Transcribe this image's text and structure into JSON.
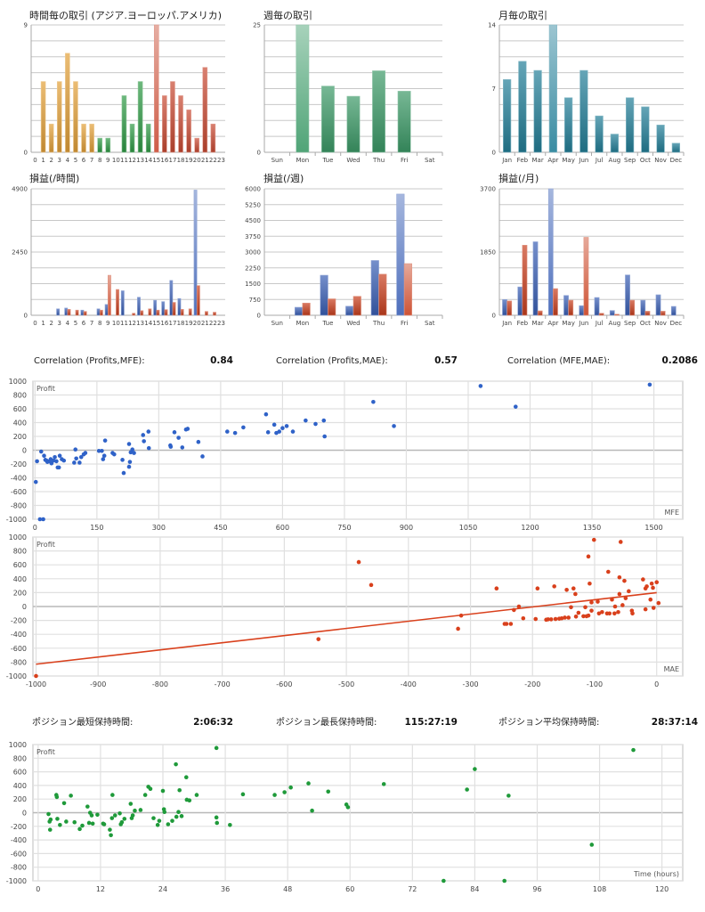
{
  "stats": {
    "correlations": [
      {
        "label": "Correlation (Profits,MFE):",
        "value": "0.84"
      },
      {
        "label": "Correlation (Profits,MAE):",
        "value": "0.57"
      },
      {
        "label": "Correlation (MFE,MAE):",
        "value": "0.2086"
      }
    ],
    "holding_times": [
      {
        "label": "ポジション最短保持時間:",
        "value": "2:06:32"
      },
      {
        "label": "ポジション最長保持時間:",
        "value": "115:27:19"
      },
      {
        "label": "ポジション平均保持時間:",
        "value": "28:37:14"
      }
    ]
  },
  "chart_data": [
    {
      "id": "hourly_trades",
      "type": "bar",
      "title": "時間毎の取引 (アジア.ヨーロッパ.アメリカ)",
      "categories": [
        "0",
        "1",
        "2",
        "3",
        "4",
        "5",
        "6",
        "7",
        "8",
        "9",
        "10",
        "11",
        "12",
        "13",
        "14",
        "15",
        "16",
        "17",
        "18",
        "19",
        "20",
        "21",
        "22",
        "23"
      ],
      "series_values": [
        [
          0,
          5,
          2,
          5,
          7,
          5,
          2,
          2,
          1,
          1,
          0,
          4,
          2,
          5,
          2,
          9,
          4,
          5,
          4,
          3,
          1,
          6,
          2,
          0
        ]
      ],
      "colors": [
        "#e2a03a",
        "#e2a03a",
        "#e2a03a",
        "#e2a03a",
        "#e2a03a",
        "#e2a03a",
        "#e2a03a",
        "#e2a03a",
        "#2f9a45",
        "#2f9a45",
        "#2f9a45",
        "#2f9a45",
        "#2f9a45",
        "#2f9a45",
        "#2f9a45",
        "#c84a32",
        "#c84a32",
        "#c84a32",
        "#c84a32",
        "#c84a32",
        "#c84a32",
        "#c84a32",
        "#c84a32",
        "#c84a32"
      ],
      "ylim": [
        0,
        9
      ],
      "yticks": [
        0,
        9
      ]
    },
    {
      "id": "weekly_trades",
      "type": "bar",
      "title": "週毎の取引",
      "categories": [
        "Sun",
        "Mon",
        "Tue",
        "Wed",
        "Thu",
        "Fri",
        "Sat"
      ],
      "series_values": [
        [
          0,
          25,
          13,
          11,
          16,
          12,
          0
        ]
      ],
      "colors": [
        "#3c9a68"
      ],
      "ylim": [
        0,
        25
      ],
      "yticks": [
        0,
        25
      ]
    },
    {
      "id": "monthly_trades",
      "type": "bar",
      "title": "月毎の取引",
      "categories": [
        "Jan",
        "Feb",
        "Mar",
        "Apr",
        "May",
        "Jun",
        "Jul",
        "Aug",
        "Sep",
        "Oct",
        "Nov",
        "Dec"
      ],
      "series_values": [
        [
          8,
          10,
          9,
          14,
          6,
          9,
          4,
          2,
          6,
          5,
          3,
          1
        ]
      ],
      "colors": [
        "#237f98"
      ],
      "ylim": [
        0,
        14
      ],
      "yticks": [
        0,
        7,
        14
      ]
    },
    {
      "id": "hourly_pl",
      "type": "bar",
      "title": "損益(/時間)",
      "categories": [
        "0",
        "1",
        "2",
        "3",
        "4",
        "5",
        "6",
        "7",
        "8",
        "9",
        "10",
        "11",
        "12",
        "13",
        "14",
        "15",
        "16",
        "17",
        "18",
        "19",
        "20",
        "21",
        "22",
        "23"
      ],
      "series_values": [
        [
          0,
          0,
          0,
          250,
          280,
          0,
          200,
          0,
          250,
          420,
          0,
          950,
          0,
          700,
          0,
          580,
          530,
          1350,
          650,
          0,
          4850,
          0,
          0,
          0
        ],
        [
          0,
          0,
          0,
          0,
          230,
          200,
          150,
          0,
          200,
          1550,
          1000,
          0,
          80,
          180,
          250,
          200,
          220,
          500,
          230,
          250,
          1150,
          150,
          120,
          0
        ]
      ],
      "colors": [
        "#3a5fb5",
        "#c8401e"
      ],
      "ylim": [
        0,
        4900
      ],
      "yticks": [
        0,
        2450,
        4900
      ]
    },
    {
      "id": "weekly_pl",
      "type": "bar",
      "title": "損益(/週)",
      "categories": [
        "Sun",
        "Mon",
        "Tue",
        "Wed",
        "Thu",
        "Fri",
        "Sat"
      ],
      "series_values": [
        [
          0,
          380,
          1900,
          430,
          2600,
          5750,
          0
        ],
        [
          0,
          580,
          780,
          900,
          1950,
          2450,
          0
        ]
      ],
      "colors": [
        "#3a5fb5",
        "#c8401e"
      ],
      "ylim": [
        0,
        6000
      ],
      "yticks": [
        0,
        750,
        1500,
        2250,
        3000,
        3750,
        4500,
        5250,
        6000
      ]
    },
    {
      "id": "monthly_pl",
      "type": "bar",
      "title": "損益(/月)",
      "categories": [
        "Jan",
        "Feb",
        "Mar",
        "Apr",
        "May",
        "Jun",
        "Jul",
        "Aug",
        "Sep",
        "Oct",
        "Nov",
        "Dec"
      ],
      "series_values": [
        [
          460,
          830,
          2150,
          3700,
          580,
          280,
          520,
          140,
          1180,
          440,
          600,
          260
        ],
        [
          420,
          2050,
          130,
          780,
          440,
          2280,
          60,
          30,
          440,
          120,
          120,
          0
        ]
      ],
      "colors": [
        "#3a5fb5",
        "#c8401e"
      ],
      "ylim": [
        0,
        3700
      ],
      "yticks": [
        0,
        1850,
        3700
      ]
    },
    {
      "id": "profit_vs_mfe",
      "type": "scatter",
      "ylabel": "Profit",
      "xlabel": "MFE",
      "color": "#2f62c8",
      "xlim": [
        -5,
        1570
      ],
      "ylim": [
        -1000,
        1000
      ],
      "xticks": [
        0,
        150,
        300,
        450,
        600,
        750,
        900,
        1050,
        1200,
        1350,
        1500
      ],
      "yticks": [
        -1000,
        -800,
        -600,
        -400,
        -200,
        0,
        200,
        400,
        600,
        800,
        1000
      ],
      "points": [
        [
          2,
          -460
        ],
        [
          5,
          -160
        ],
        [
          12,
          -1000
        ],
        [
          20,
          -1000
        ],
        [
          15,
          -20
        ],
        [
          22,
          -80
        ],
        [
          25,
          -140
        ],
        [
          28,
          -150
        ],
        [
          30,
          -170
        ],
        [
          35,
          -160
        ],
        [
          38,
          -130
        ],
        [
          40,
          -190
        ],
        [
          45,
          -150
        ],
        [
          48,
          -100
        ],
        [
          52,
          -160
        ],
        [
          55,
          -250
        ],
        [
          58,
          -250
        ],
        [
          60,
          -80
        ],
        [
          65,
          -130
        ],
        [
          70,
          -150
        ],
        [
          95,
          -180
        ],
        [
          98,
          10
        ],
        [
          100,
          -120
        ],
        [
          108,
          -180
        ],
        [
          112,
          -100
        ],
        [
          118,
          -60
        ],
        [
          122,
          -40
        ],
        [
          155,
          -10
        ],
        [
          162,
          -10
        ],
        [
          165,
          -130
        ],
        [
          168,
          -80
        ],
        [
          170,
          140
        ],
        [
          188,
          -40
        ],
        [
          192,
          -60
        ],
        [
          212,
          -140
        ],
        [
          215,
          -330
        ],
        [
          228,
          -240
        ],
        [
          228,
          90
        ],
        [
          230,
          -170
        ],
        [
          232,
          -30
        ],
        [
          236,
          10
        ],
        [
          240,
          -40
        ],
        [
          262,
          220
        ],
        [
          264,
          130
        ],
        [
          275,
          270
        ],
        [
          276,
          30
        ],
        [
          328,
          70
        ],
        [
          329,
          50
        ],
        [
          338,
          260
        ],
        [
          348,
          180
        ],
        [
          357,
          40
        ],
        [
          366,
          300
        ],
        [
          370,
          310
        ],
        [
          396,
          120
        ],
        [
          406,
          -90
        ],
        [
          466,
          270
        ],
        [
          485,
          250
        ],
        [
          505,
          330
        ],
        [
          560,
          520
        ],
        [
          565,
          260
        ],
        [
          580,
          370
        ],
        [
          585,
          250
        ],
        [
          592,
          270
        ],
        [
          600,
          320
        ],
        [
          610,
          350
        ],
        [
          625,
          270
        ],
        [
          656,
          430
        ],
        [
          680,
          380
        ],
        [
          700,
          430
        ],
        [
          702,
          200
        ],
        [
          820,
          700
        ],
        [
          870,
          350
        ],
        [
          1080,
          930
        ],
        [
          1165,
          630
        ],
        [
          1490,
          950
        ]
      ]
    },
    {
      "id": "profit_vs_mae",
      "type": "scatter",
      "ylabel": "Profit",
      "xlabel": "MAE",
      "color": "#d9401c",
      "xlim": [
        -1005,
        42
      ],
      "ylim": [
        -1000,
        1000
      ],
      "xticks": [
        -1000,
        -900,
        -800,
        -700,
        -600,
        -500,
        -400,
        -300,
        -200,
        -100,
        0
      ],
      "yticks": [
        -1000,
        -800,
        -600,
        -400,
        -200,
        0,
        200,
        400,
        600,
        800,
        1000
      ],
      "trendline": [
        [
          -1000,
          -830
        ],
        [
          0,
          200
        ]
      ],
      "points": [
        [
          -1000,
          -1000
        ],
        [
          -545,
          -470
        ],
        [
          -480,
          640
        ],
        [
          -460,
          310
        ],
        [
          -320,
          -320
        ],
        [
          -315,
          -130
        ],
        [
          -258,
          260
        ],
        [
          -245,
          -250
        ],
        [
          -242,
          -250
        ],
        [
          -235,
          -250
        ],
        [
          -230,
          -50
        ],
        [
          -222,
          0
        ],
        [
          -215,
          -170
        ],
        [
          -195,
          -180
        ],
        [
          -192,
          260
        ],
        [
          -178,
          -190
        ],
        [
          -175,
          -185
        ],
        [
          -170,
          -185
        ],
        [
          -165,
          290
        ],
        [
          -163,
          -180
        ],
        [
          -157,
          -175
        ],
        [
          -153,
          -170
        ],
        [
          -148,
          -160
        ],
        [
          -145,
          240
        ],
        [
          -142,
          -160
        ],
        [
          -138,
          -10
        ],
        [
          -134,
          260
        ],
        [
          -131,
          180
        ],
        [
          -130,
          -145
        ],
        [
          -126,
          -90
        ],
        [
          -118,
          -140
        ],
        [
          -115,
          -10
        ],
        [
          -113,
          -140
        ],
        [
          -110,
          -130
        ],
        [
          -110,
          720
        ],
        [
          -108,
          330
        ],
        [
          -105,
          60
        ],
        [
          -105,
          -60
        ],
        [
          -101,
          960
        ],
        [
          -95,
          70
        ],
        [
          -93,
          -100
        ],
        [
          -88,
          -80
        ],
        [
          -80,
          -100
        ],
        [
          -78,
          500
        ],
        [
          -76,
          -100
        ],
        [
          -72,
          100
        ],
        [
          -68,
          -100
        ],
        [
          -67,
          0
        ],
        [
          -62,
          -80
        ],
        [
          -60,
          420
        ],
        [
          -60,
          180
        ],
        [
          -58,
          930
        ],
        [
          -55,
          20
        ],
        [
          -52,
          370
        ],
        [
          -50,
          120
        ],
        [
          -45,
          220
        ],
        [
          -40,
          -60
        ],
        [
          -39,
          -100
        ],
        [
          -22,
          390
        ],
        [
          -18,
          -40
        ],
        [
          -18,
          260
        ],
        [
          -16,
          290
        ],
        [
          -10,
          100
        ],
        [
          -8,
          330
        ],
        [
          -6,
          270
        ],
        [
          -5,
          -20
        ],
        [
          0,
          350
        ],
        [
          3,
          50
        ]
      ]
    },
    {
      "id": "profit_vs_time",
      "type": "scatter",
      "ylabel": "Profit",
      "xlabel": "Time (hours)",
      "color": "#1f9a3a",
      "xlim": [
        -1,
        124
      ],
      "ylim": [
        -1000,
        1000
      ],
      "xticks": [
        0,
        12,
        24,
        36,
        48,
        60,
        72,
        84,
        96,
        108,
        120
      ],
      "yticks": [
        -1000,
        -800,
        -600,
        -400,
        -200,
        0,
        200,
        400,
        600,
        800,
        1000
      ],
      "points": [
        [
          2,
          -20
        ],
        [
          2.2,
          -130
        ],
        [
          2.4,
          -100
        ],
        [
          2.3,
          -250
        ],
        [
          3.5,
          260
        ],
        [
          3.6,
          230
        ],
        [
          3.7,
          -90
        ],
        [
          4.2,
          -180
        ],
        [
          5,
          140
        ],
        [
          5.4,
          -130
        ],
        [
          6.3,
          250
        ],
        [
          7,
          -140
        ],
        [
          8,
          -240
        ],
        [
          8.5,
          -190
        ],
        [
          9.5,
          90
        ],
        [
          10,
          0
        ],
        [
          9.8,
          -150
        ],
        [
          10.3,
          -40
        ],
        [
          10.5,
          -160
        ],
        [
          11.4,
          -30
        ],
        [
          12.5,
          -160
        ],
        [
          12.7,
          -170
        ],
        [
          13.8,
          -250
        ],
        [
          14,
          -330
        ],
        [
          14.2,
          -80
        ],
        [
          14.3,
          260
        ],
        [
          14.8,
          -40
        ],
        [
          15.7,
          -10
        ],
        [
          15.9,
          -170
        ],
        [
          16.1,
          -140
        ],
        [
          16.6,
          -90
        ],
        [
          17.8,
          130
        ],
        [
          18,
          -80
        ],
        [
          18.2,
          -40
        ],
        [
          18.6,
          30
        ],
        [
          19.7,
          40
        ],
        [
          20.6,
          260
        ],
        [
          21.2,
          380
        ],
        [
          21.6,
          350
        ],
        [
          22.2,
          -80
        ],
        [
          23,
          -180
        ],
        [
          23.3,
          -120
        ],
        [
          24,
          320
        ],
        [
          24.2,
          50
        ],
        [
          24.3,
          10
        ],
        [
          25,
          -170
        ],
        [
          25.8,
          -120
        ],
        [
          26.5,
          710
        ],
        [
          26.6,
          -60
        ],
        [
          27,
          10
        ],
        [
          27.2,
          330
        ],
        [
          27.6,
          -50
        ],
        [
          28.5,
          520
        ],
        [
          28.6,
          190
        ],
        [
          29.1,
          180
        ],
        [
          30.5,
          260
        ],
        [
          34.3,
          950
        ],
        [
          34.3,
          -70
        ],
        [
          34.4,
          -150
        ],
        [
          36.9,
          -180
        ],
        [
          39.4,
          270
        ],
        [
          45.5,
          260
        ],
        [
          47.4,
          300
        ],
        [
          48.6,
          370
        ],
        [
          52,
          430
        ],
        [
          52.7,
          30
        ],
        [
          55.8,
          310
        ],
        [
          59.3,
          120
        ],
        [
          59.6,
          80
        ],
        [
          66.5,
          420
        ],
        [
          78,
          -1000
        ],
        [
          82.5,
          340
        ],
        [
          84,
          640
        ],
        [
          89.7,
          -1000
        ],
        [
          90.5,
          250
        ],
        [
          106.5,
          -470
        ],
        [
          114.5,
          920
        ]
      ]
    }
  ]
}
